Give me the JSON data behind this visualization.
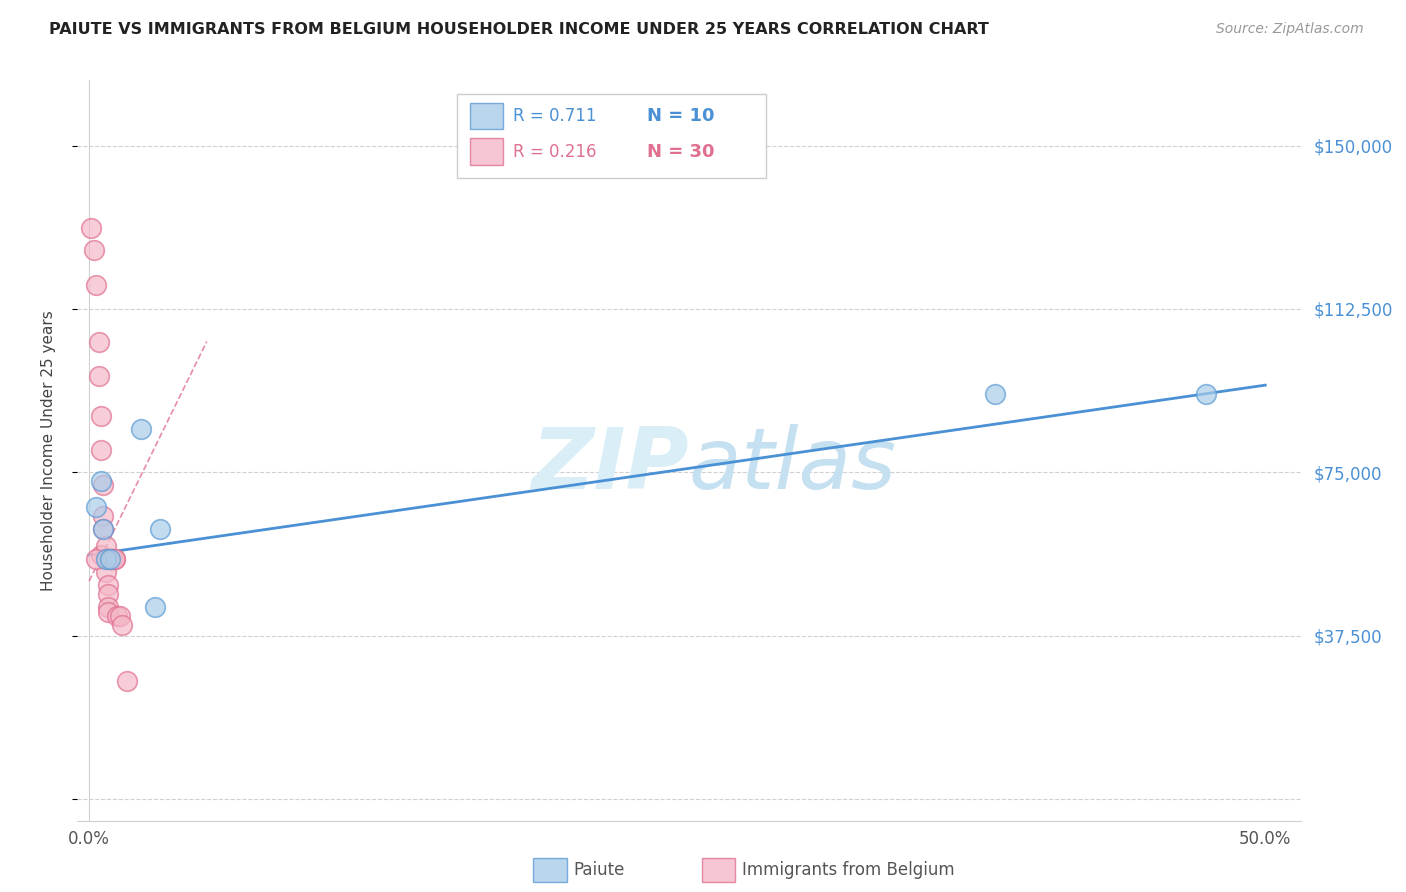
{
  "title": "PAIUTE VS IMMIGRANTS FROM BELGIUM HOUSEHOLDER INCOME UNDER 25 YEARS CORRELATION CHART",
  "source": "Source: ZipAtlas.com",
  "ylabel": "Householder Income Under 25 years",
  "yticks": [
    0,
    37500,
    75000,
    112500,
    150000
  ],
  "ytick_labels": [
    "",
    "$37,500",
    "$75,000",
    "$112,500",
    "$150,000"
  ],
  "ylim": [
    -5000,
    165000
  ],
  "xlim": [
    -0.005,
    0.515
  ],
  "blue_color": "#a8cce8",
  "pink_color": "#f4b8c8",
  "blue_edge_color": "#5b9bd5",
  "pink_edge_color": "#e07090",
  "blue_line_color": "#4a90d4",
  "pink_line_color": "#e07090",
  "grid_color": "#d0d0d0",
  "watermark_color": "#d0e8f5",
  "legend_blue_R": "0.711",
  "legend_blue_N": "10",
  "legend_pink_R": "0.216",
  "legend_pink_N": "30",
  "blue_x": [
    0.003,
    0.005,
    0.006,
    0.007,
    0.009,
    0.022,
    0.028,
    0.03,
    0.385,
    0.475
  ],
  "blue_y": [
    67000,
    73000,
    62000,
    55000,
    55000,
    85000,
    44000,
    62000,
    93000,
    93000
  ],
  "pink_x": [
    0.001,
    0.002,
    0.003,
    0.004,
    0.004,
    0.005,
    0.005,
    0.005,
    0.006,
    0.006,
    0.006,
    0.007,
    0.007,
    0.007,
    0.008,
    0.008,
    0.008,
    0.008,
    0.009,
    0.009,
    0.009,
    0.01,
    0.01,
    0.011,
    0.011,
    0.012,
    0.013,
    0.014,
    0.016,
    0.003
  ],
  "pink_y": [
    131000,
    126000,
    118000,
    105000,
    97000,
    88000,
    80000,
    56000,
    72000,
    65000,
    62000,
    58000,
    55000,
    52000,
    49000,
    47000,
    44000,
    43000,
    55000,
    55000,
    55000,
    55000,
    55000,
    55000,
    55000,
    42000,
    42000,
    40000,
    27000,
    55000
  ],
  "blue_trend_x": [
    0.0,
    0.5
  ],
  "blue_trend_y": [
    56000,
    95000
  ],
  "pink_trend_x": [
    0.0,
    0.05
  ],
  "pink_trend_y": [
    50000,
    105000
  ],
  "xtick_positions": [
    0.0,
    0.5
  ],
  "xtick_labels": [
    "0.0%",
    "50.0%"
  ]
}
